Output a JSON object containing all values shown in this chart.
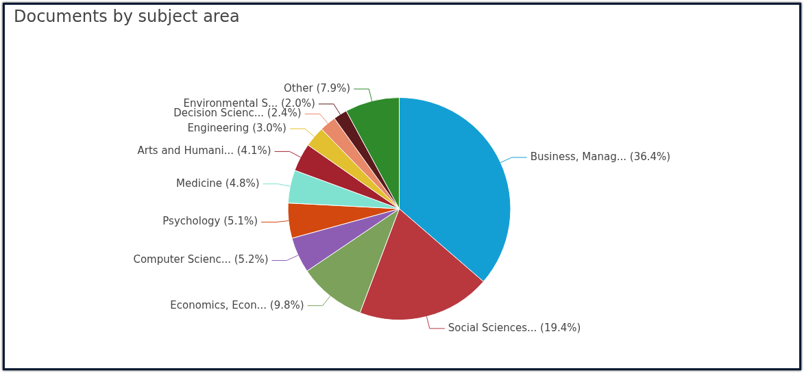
{
  "chart_data": {
    "type": "pie",
    "title": "Documents by subject area",
    "categories": [
      "Business, Manag... (36.4%)",
      "Social Sciences... (19.4%)",
      "Economics, Econ... (9.8%)",
      "Computer Scienc... (5.2%)",
      "Psychology (5.1%)",
      "Medicine (4.8%)",
      "Arts and Humani... (4.1%)",
      "Engineering (3.0%)",
      "Decision Scienc... (2.4%)",
      "Environmental S... (2.0%)",
      "Other (7.9%)"
    ],
    "values": [
      36.4,
      19.4,
      9.8,
      5.2,
      5.1,
      4.8,
      4.1,
      3.0,
      2.4,
      2.0,
      7.9
    ],
    "colors": [
      "#149fd4",
      "#b8383e",
      "#7ca15a",
      "#8d5db4",
      "#d2480e",
      "#7fe2d0",
      "#a3222e",
      "#e2c02f",
      "#e8896a",
      "#5b1a1c",
      "#2e8a2a"
    ],
    "legend": false
  }
}
